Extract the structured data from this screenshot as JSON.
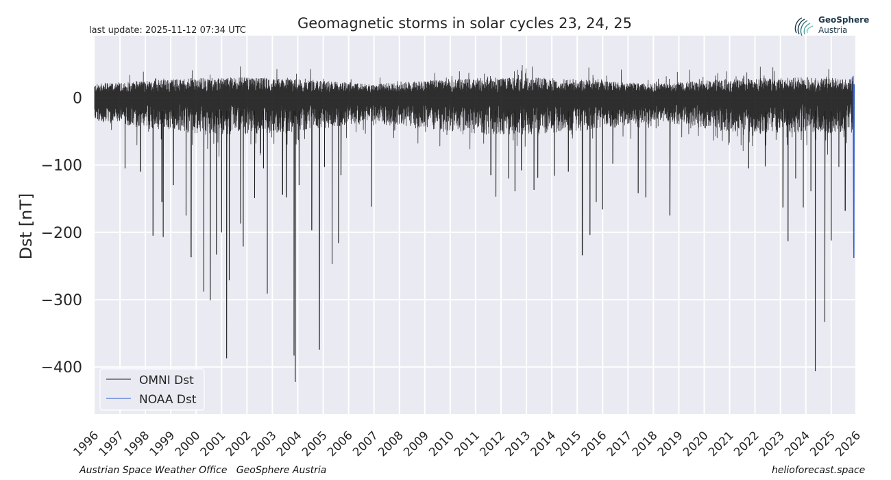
{
  "header": {
    "last_update": "last update: 2025-11-12 07:34 UTC"
  },
  "logo": {
    "name": "GeoSphere",
    "sub": "Austria"
  },
  "footer": {
    "left": "Austrian Space Weather Office   GeoSphere Austria",
    "right": "helioforecast.space"
  },
  "colors": {
    "plot_bg": "#eaeaf2",
    "grid": "#ffffff",
    "omni": "#1a1a1a",
    "noaa": "#2c5cd6"
  },
  "chart_data": {
    "type": "line",
    "title": "Geomagnetic storms in solar cycles 23, 24, 25",
    "xlabel": "",
    "ylabel": "Dst [nT]",
    "xlim": [
      1996.0,
      2025.95
    ],
    "ylim": [
      -470,
      92
    ],
    "x_tick_labels": [
      "1996",
      "1997",
      "1998",
      "1999",
      "2000",
      "2001",
      "2002",
      "2003",
      "2004",
      "2005",
      "2006",
      "2007",
      "2008",
      "2009",
      "2010",
      "2011",
      "2012",
      "2013",
      "2014",
      "2015",
      "2016",
      "2017",
      "2018",
      "2019",
      "2020",
      "2021",
      "2022",
      "2023",
      "2024",
      "2025",
      "2026"
    ],
    "y_ticks": [
      0,
      -100,
      -200,
      -300,
      -400
    ],
    "y_tick_labels": [
      "0",
      "−100",
      "−200",
      "−300",
      "−400"
    ],
    "grid": true,
    "legend_position": "bottom-left",
    "series": [
      {
        "name": "OMNI Dst",
        "color": "#1a1a1a",
        "description": "hourly Dst; dense band ~ +30 to -60 nT with storm spikes",
        "storm_minima": [
          {
            "x": 1997.2,
            "y": -105
          },
          {
            "x": 1997.8,
            "y": -110
          },
          {
            "x": 1998.3,
            "y": -205
          },
          {
            "x": 1998.65,
            "y": -155
          },
          {
            "x": 1998.7,
            "y": -207
          },
          {
            "x": 1999.1,
            "y": -130
          },
          {
            "x": 1999.6,
            "y": -175
          },
          {
            "x": 1999.8,
            "y": -237
          },
          {
            "x": 2000.3,
            "y": -288
          },
          {
            "x": 2000.55,
            "y": -301
          },
          {
            "x": 2000.8,
            "y": -233
          },
          {
            "x": 2001.0,
            "y": -200
          },
          {
            "x": 2001.2,
            "y": -387
          },
          {
            "x": 2001.3,
            "y": -271
          },
          {
            "x": 2001.75,
            "y": -187
          },
          {
            "x": 2001.85,
            "y": -221
          },
          {
            "x": 2002.3,
            "y": -149
          },
          {
            "x": 2002.65,
            "y": -105
          },
          {
            "x": 2002.8,
            "y": -291
          },
          {
            "x": 2003.4,
            "y": -144
          },
          {
            "x": 2003.55,
            "y": -148
          },
          {
            "x": 2003.85,
            "y": -383
          },
          {
            "x": 2003.9,
            "y": -422
          },
          {
            "x": 2004.05,
            "y": -130
          },
          {
            "x": 2004.55,
            "y": -197
          },
          {
            "x": 2004.85,
            "y": -374
          },
          {
            "x": 2005.05,
            "y": -103
          },
          {
            "x": 2005.35,
            "y": -247
          },
          {
            "x": 2005.6,
            "y": -216
          },
          {
            "x": 2005.7,
            "y": -115
          },
          {
            "x": 2006.9,
            "y": -162
          },
          {
            "x": 2011.6,
            "y": -115
          },
          {
            "x": 2011.8,
            "y": -147
          },
          {
            "x": 2012.3,
            "y": -120
          },
          {
            "x": 2012.55,
            "y": -139
          },
          {
            "x": 2012.8,
            "y": -108
          },
          {
            "x": 2013.3,
            "y": -137
          },
          {
            "x": 2013.45,
            "y": -119
          },
          {
            "x": 2014.1,
            "y": -116
          },
          {
            "x": 2014.65,
            "y": -110
          },
          {
            "x": 2015.2,
            "y": -234
          },
          {
            "x": 2015.5,
            "y": -204
          },
          {
            "x": 2015.75,
            "y": -155
          },
          {
            "x": 2016.0,
            "y": -166
          },
          {
            "x": 2016.4,
            "y": -98
          },
          {
            "x": 2017.4,
            "y": -142
          },
          {
            "x": 2017.7,
            "y": -148
          },
          {
            "x": 2018.65,
            "y": -175
          },
          {
            "x": 2021.75,
            "y": -105
          },
          {
            "x": 2022.4,
            "y": -102
          },
          {
            "x": 2023.1,
            "y": -163
          },
          {
            "x": 2023.3,
            "y": -213
          },
          {
            "x": 2023.6,
            "y": -120
          },
          {
            "x": 2023.9,
            "y": -163
          },
          {
            "x": 2024.2,
            "y": -139
          },
          {
            "x": 2024.37,
            "y": -406
          },
          {
            "x": 2024.75,
            "y": -333
          },
          {
            "x": 2025.0,
            "y": -212
          },
          {
            "x": 2025.3,
            "y": -103
          },
          {
            "x": 2025.55,
            "y": -168
          }
        ]
      },
      {
        "name": "NOAA Dst",
        "color": "#2c5cd6",
        "description": "recent data at the far right",
        "points": [
          {
            "x": 2025.86,
            "y": 32
          },
          {
            "x": 2025.87,
            "y": -20
          },
          {
            "x": 2025.875,
            "y": -95
          },
          {
            "x": 2025.88,
            "y": -140
          },
          {
            "x": 2025.885,
            "y": -215
          },
          {
            "x": 2025.89,
            "y": -238
          },
          {
            "x": 2025.895,
            "y": -110
          },
          {
            "x": 2025.9,
            "y": -60
          },
          {
            "x": 2025.905,
            "y": 20
          }
        ]
      }
    ]
  }
}
